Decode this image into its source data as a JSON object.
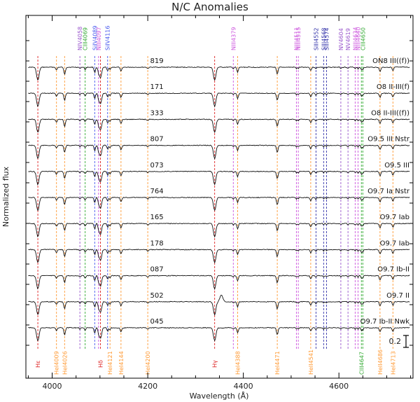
{
  "chart_data": {
    "type": "line",
    "title": "N/C Anomalies",
    "xlabel": "Wavelength (Å)",
    "ylabel": "Normalized flux",
    "xlim": [
      3945,
      4755
    ],
    "x_ticks": [
      4000,
      4200,
      4400,
      4600
    ],
    "scale_bar_label": "0.2",
    "colors": {
      "HI": "#dd2222",
      "HeI": "#ff9933",
      "NIII": "#cc55dd",
      "NIV": "#9955cc",
      "SiIV": "#4455ee",
      "CIII": "#33aa33",
      "SIII": "#3333aa",
      "spectrum": "#111111"
    },
    "line_groups": {
      "hydrogen": [
        {
          "label": "Hε",
          "wavelength": 3970,
          "color_key": "HI"
        },
        {
          "label": "Hδ",
          "wavelength": 4101,
          "color_key": "HI"
        },
        {
          "label": "Hγ",
          "wavelength": 4340,
          "color_key": "HI"
        }
      ],
      "helium": [
        {
          "label": "HeI4009",
          "wavelength": 4009
        },
        {
          "label": "HeI4026",
          "wavelength": 4026
        },
        {
          "label": "HeI4121",
          "wavelength": 4121
        },
        {
          "label": "HeI4144",
          "wavelength": 4144
        },
        {
          "label": "HeI4200",
          "wavelength": 4200
        },
        {
          "label": "HeI4388",
          "wavelength": 4388
        },
        {
          "label": "HeI4471",
          "wavelength": 4471
        },
        {
          "label": "HeII4541",
          "wavelength": 4541
        },
        {
          "label": "HeII4686",
          "wavelength": 4686
        },
        {
          "label": "HeI4713",
          "wavelength": 4713
        }
      ],
      "carbon_bottom": [
        {
          "label": "CIII4647",
          "wavelength": 4647,
          "color_key": "CIII"
        }
      ],
      "top": [
        {
          "label": "NIV4058",
          "wavelength": 4058,
          "color_key": "NIV"
        },
        {
          "label": "CIII4069",
          "wavelength": 4069,
          "color_key": "CIII"
        },
        {
          "label": "SiIV4089",
          "wavelength": 4089,
          "color_key": "SiIV"
        },
        {
          "label": "NIII4097",
          "wavelength": 4097,
          "color_key": "NIII"
        },
        {
          "label": "SiIV4116",
          "wavelength": 4116,
          "color_key": "SiIV"
        },
        {
          "label": "NIII4379",
          "wavelength": 4379,
          "color_key": "NIII"
        },
        {
          "label": "NIII4511",
          "wavelength": 4511,
          "color_key": "NIII"
        },
        {
          "label": "NIII4515",
          "wavelength": 4515,
          "color_key": "NIII"
        },
        {
          "label": "SIII4552",
          "wavelength": 4552,
          "color_key": "SIII"
        },
        {
          "label": "SIII4568",
          "wavelength": 4568,
          "color_key": "SIII"
        },
        {
          "label": "SIII4574",
          "wavelength": 4574,
          "color_key": "SIII"
        },
        {
          "label": "NV4604",
          "wavelength": 4604,
          "color_key": "NIV"
        },
        {
          "label": "NV4619",
          "wavelength": 4619,
          "color_key": "NIV"
        },
        {
          "label": "NIII4634",
          "wavelength": 4634,
          "color_key": "NIII"
        },
        {
          "label": "NIII4640",
          "wavelength": 4640,
          "color_key": "NIII"
        },
        {
          "label": "CIII4650",
          "wavelength": 4650,
          "color_key": "CIII"
        }
      ]
    },
    "series": [
      {
        "name": "819",
        "sptype": "ON8 III((f))"
      },
      {
        "name": "171",
        "sptype": "O8 II-III(f)"
      },
      {
        "name": "333",
        "sptype": "O8 II-III((f))"
      },
      {
        "name": "807",
        "sptype": "O9.5 III Nstr"
      },
      {
        "name": "073",
        "sptype": "O9.5 III"
      },
      {
        "name": "764",
        "sptype": "O9.7 Ia Nstr"
      },
      {
        "name": "165",
        "sptype": "O9.7 Iab"
      },
      {
        "name": "178",
        "sptype": "O9.7 Iab"
      },
      {
        "name": "087",
        "sptype": "O9.7 Ib-II"
      },
      {
        "name": "502",
        "sptype": "O9.7 II"
      },
      {
        "name": "045",
        "sptype": "O9.7 Ib-II Nwk"
      }
    ]
  }
}
